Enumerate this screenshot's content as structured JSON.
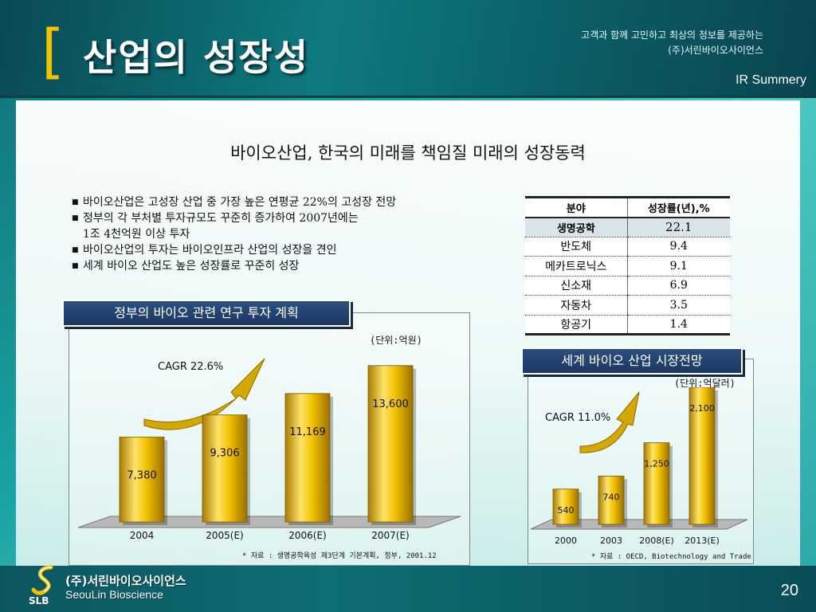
{
  "header": {
    "bracket": "[",
    "title": "산업의 성장성",
    "tagline_line1": "고객과 함께 고민하고 최상의 정보를 제공하는",
    "tagline_line2": "(주)서린바이오사이언스",
    "section_label": "IR Summery"
  },
  "subtitle": "바이오산업, 한국의 미래를 책임질 미래의 성장동력",
  "bullets": [
    "바이오산업은 고성장 산업 중 가장 높은 연평균 22%의 고성장 전망",
    "정부의 각 부처별 투자규모도 꾸준히 증가하여 2007년에는",
    "1조 4천억원 이상 투자",
    "바이오산업의 투자는 바이오인프라 산업의 성장을 견인",
    "세계 바이오 산업도 높은 성장률로 꾸준히 성장"
  ],
  "bullet_marker": "■",
  "table": {
    "headers": [
      "분야",
      "성장률(년),%"
    ],
    "rows": [
      {
        "field": "생명공학",
        "rate": "22.1"
      },
      {
        "field": "반도체",
        "rate": "9.4"
      },
      {
        "field": "메카트로닉스",
        "rate": "9.1"
      },
      {
        "field": "신소재",
        "rate": "6.9"
      },
      {
        "field": "자동차",
        "rate": "3.5"
      },
      {
        "field": "항공기",
        "rate": "1.4"
      }
    ],
    "highlight_color": "#d9e4e9"
  },
  "chart_data": [
    {
      "type": "bar",
      "title": "정부의 바이오 관련 연구 투자 계획",
      "unit": "(단위:억원)",
      "annotation": "CAGR 22.6%",
      "categories": [
        "2004",
        "2005(E)",
        "2006(E)",
        "2007(E)"
      ],
      "values": [
        7380,
        9306,
        11169,
        13600
      ],
      "value_labels": [
        "7,380",
        "9,306",
        "11,169",
        "13,600"
      ],
      "source": "* 자료 : 생명공학육성 제3단계 기본계획, 정부, 2001.12",
      "bar_color": "#f2c200",
      "ylim": [
        0,
        14000
      ]
    },
    {
      "type": "bar",
      "title": "세계 바이오 산업 시장전망",
      "unit": "(단위:억달러)",
      "annotation": "CAGR 11.0%",
      "categories": [
        "2000",
        "2003",
        "2008(E)",
        "2013(E)"
      ],
      "values": [
        540,
        740,
        1250,
        2100
      ],
      "value_labels": [
        "540",
        "740",
        "1,250",
        "2,100"
      ],
      "source": "* 자료 : OECD, Biotechnology and Trade",
      "bar_color": "#f2c200",
      "ylim": [
        0,
        2100
      ]
    }
  ],
  "footer": {
    "logo_text_kr": "(주)서린바이오사이언스",
    "logo_text_en": "SeouLin Bioscience",
    "logo_abbr": "SLB",
    "page_number": "20"
  },
  "colors": {
    "accent_yellow": "#f2c200",
    "tag_navy": "#1b3761",
    "teal_dark": "#0a4a54"
  }
}
